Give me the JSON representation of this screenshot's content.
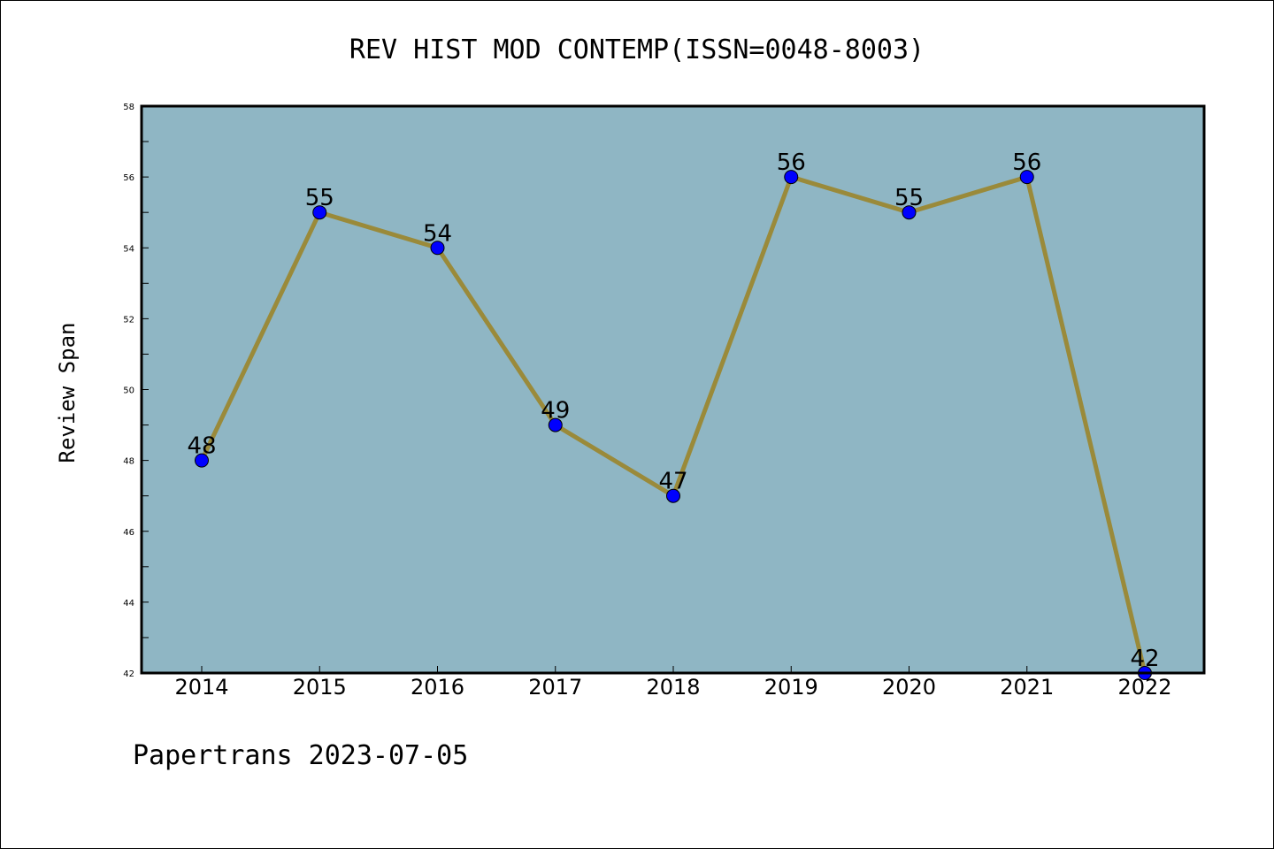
{
  "chart_data": {
    "type": "line",
    "title": "REV HIST MOD CONTEMP(ISSN=0048-8003)",
    "xlabel": "",
    "ylabel": "Review Span",
    "categories": [
      "2014",
      "2015",
      "2016",
      "2017",
      "2018",
      "2019",
      "2020",
      "2021",
      "2022"
    ],
    "series": [
      {
        "values": [
          48,
          55,
          54,
          49,
          47,
          56,
          55,
          56,
          42
        ]
      }
    ],
    "data_labels": [
      "48",
      "55",
      "54",
      "49",
      "47",
      "56",
      "55",
      "56",
      "42"
    ],
    "ylim": [
      42,
      58
    ],
    "yticks": [
      "42",
      "44",
      "46",
      "48",
      "50",
      "52",
      "54",
      "56",
      "58"
    ],
    "grid": false,
    "legend": "none",
    "colors": {
      "plot_background": "#8fb6c4",
      "line": "#9a8a3a",
      "marker": "#0000ff"
    }
  },
  "footer": {
    "text": "Papertrans 2023-07-05"
  }
}
